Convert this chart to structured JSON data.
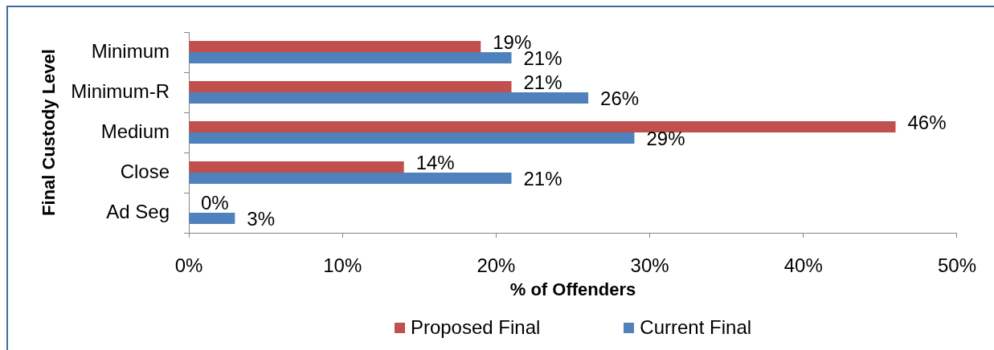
{
  "chart_data": {
    "type": "bar",
    "orientation": "horizontal",
    "ylabel": "Final Custody Level",
    "xlabel": "% of Offenders",
    "categories": [
      "Minimum",
      "Minimum-R",
      "Medium",
      "Close",
      "Ad Seg"
    ],
    "series": [
      {
        "name": "Proposed Final",
        "color": "#c0504d",
        "values": [
          19,
          21,
          46,
          14,
          0
        ],
        "value_labels": [
          "19%",
          "21%",
          "46%",
          "14%",
          "0%"
        ]
      },
      {
        "name": "Current Final",
        "color": "#4f81bd",
        "values": [
          21,
          26,
          29,
          21,
          3
        ],
        "value_labels": [
          "21%",
          "26%",
          "29%",
          "21%",
          "3%"
        ]
      }
    ],
    "xlim": [
      0,
      50
    ],
    "xticks": [
      {
        "value": 0,
        "label": "0%"
      },
      {
        "value": 10,
        "label": "10%"
      },
      {
        "value": 20,
        "label": "20%"
      },
      {
        "value": 30,
        "label": "30%"
      },
      {
        "value": 40,
        "label": "40%"
      },
      {
        "value": 50,
        "label": "50%"
      }
    ],
    "grid": false,
    "legend": "bottom"
  }
}
